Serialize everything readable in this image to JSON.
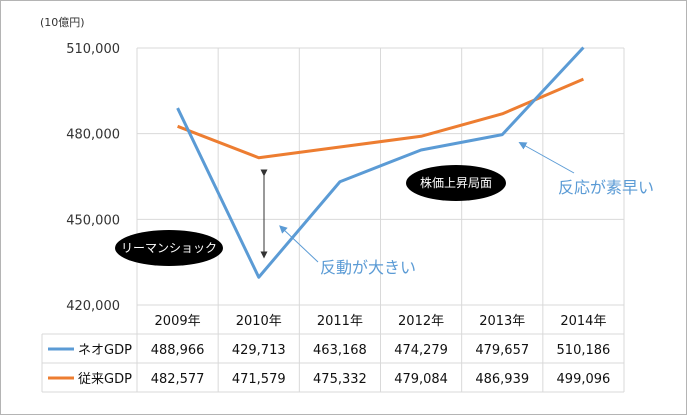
{
  "chart_data": {
    "type": "line",
    "unit_label": "(10億円)",
    "categories": [
      "2009年",
      "2010年",
      "2011年",
      "2012年",
      "2013年",
      "2014年"
    ],
    "series": [
      {
        "name": "ネオGDP",
        "color": "#5b9bd5",
        "values": [
          488966,
          429713,
          463168,
          474279,
          479657,
          510186
        ]
      },
      {
        "name": "従来GDP",
        "color": "#ed7d31",
        "values": [
          482577,
          471579,
          475332,
          479084,
          486939,
          499096
        ]
      }
    ],
    "table_values": [
      [
        "488,966",
        "429,713",
        "463,168",
        "474,279",
        "479,657",
        "510,186"
      ],
      [
        "482,577",
        "471,579",
        "475,332",
        "479,084",
        "486,939",
        "499,096"
      ]
    ],
    "ylim": [
      420000,
      510000
    ],
    "yticks": [
      420000,
      450000,
      480000,
      510000
    ],
    "ytick_labels": [
      "420,000",
      "450,000",
      "480,000",
      "510,000"
    ],
    "grid": true,
    "legend": "table-below",
    "annotations": {
      "lehman": "リーマンショック",
      "stock_rise": "株価上昇局面",
      "big_reaction": "反動が大きい",
      "fast_reaction": "反応が素早い"
    }
  }
}
